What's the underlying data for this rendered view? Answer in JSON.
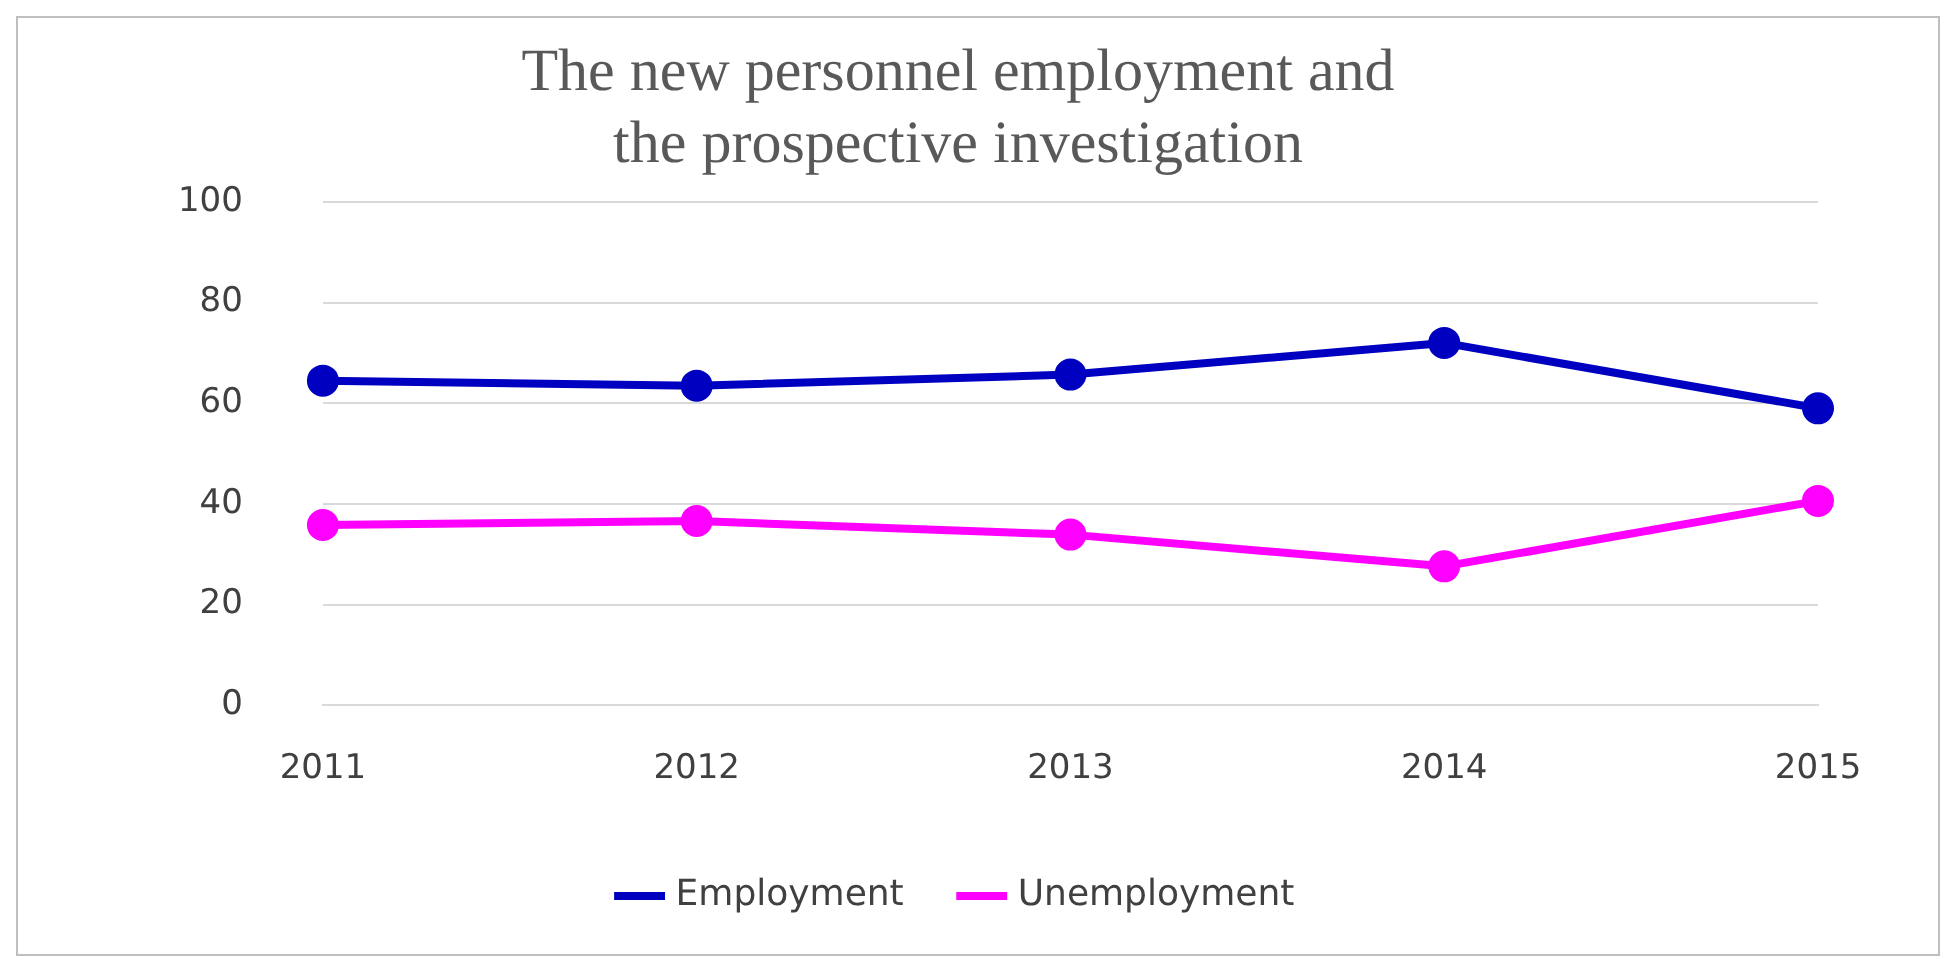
{
  "chart_data": {
    "type": "line",
    "title": [
      "The new personnel employment and",
      "the prospective investigation"
    ],
    "categories": [
      "2011",
      "2012",
      "2013",
      "2014",
      "2015"
    ],
    "series": [
      {
        "name": "Employment",
        "color": "#0000c0",
        "values": [
          64.5,
          63.5,
          65.7,
          72,
          59
        ]
      },
      {
        "name": "Unemployment",
        "color": "#ff00ff",
        "values": [
          35.8,
          36.6,
          33.9,
          27.6,
          40.6
        ]
      }
    ],
    "ylim": [
      0,
      100
    ],
    "yticks": [
      0,
      20,
      40,
      60,
      80,
      100
    ],
    "grid": "y",
    "legend": "bottom",
    "marker": "circle",
    "line_style": "solid"
  }
}
